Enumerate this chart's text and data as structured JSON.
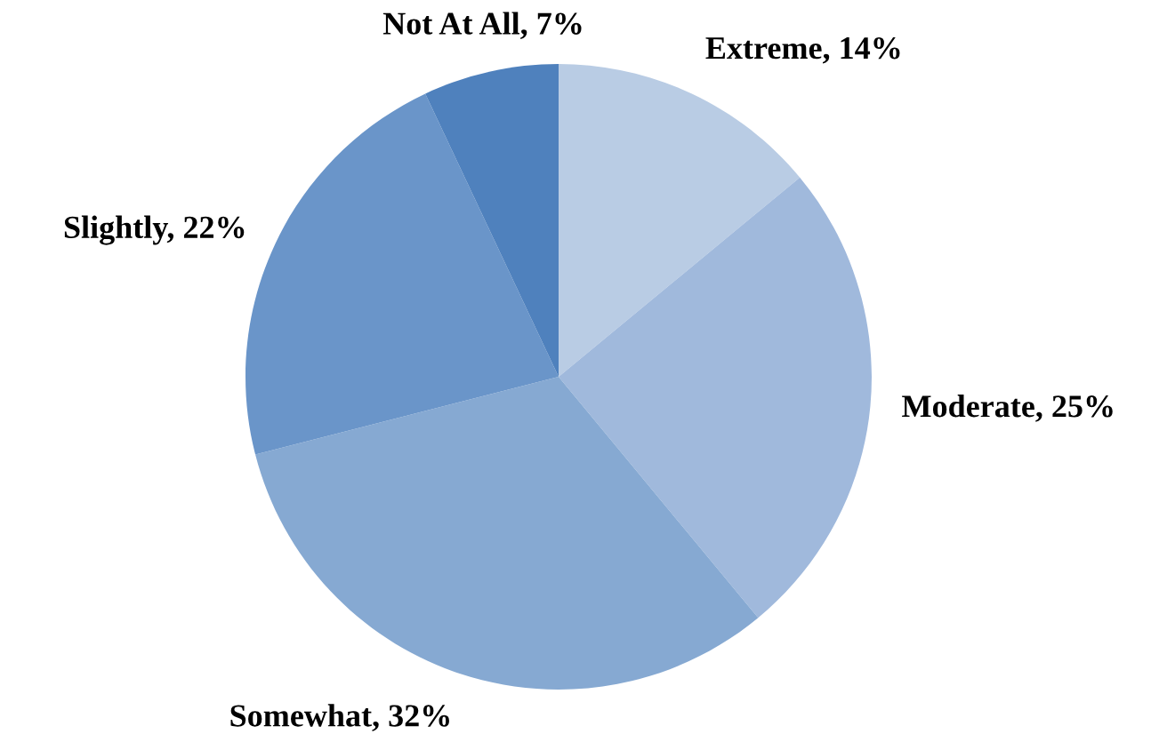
{
  "chart_data": {
    "type": "pie",
    "categories": [
      "Extreme",
      "Moderate",
      "Somewhat",
      "Slightly",
      "Not At All"
    ],
    "values": [
      14,
      25,
      32,
      22,
      7
    ],
    "value_labels": [
      "14%",
      "25%",
      "32%",
      "22%",
      "7%"
    ],
    "colors": [
      "#b9cce4",
      "#a0b9dc",
      "#86a9d2",
      "#6a95c9",
      "#4f81bd"
    ],
    "legend": false
  }
}
